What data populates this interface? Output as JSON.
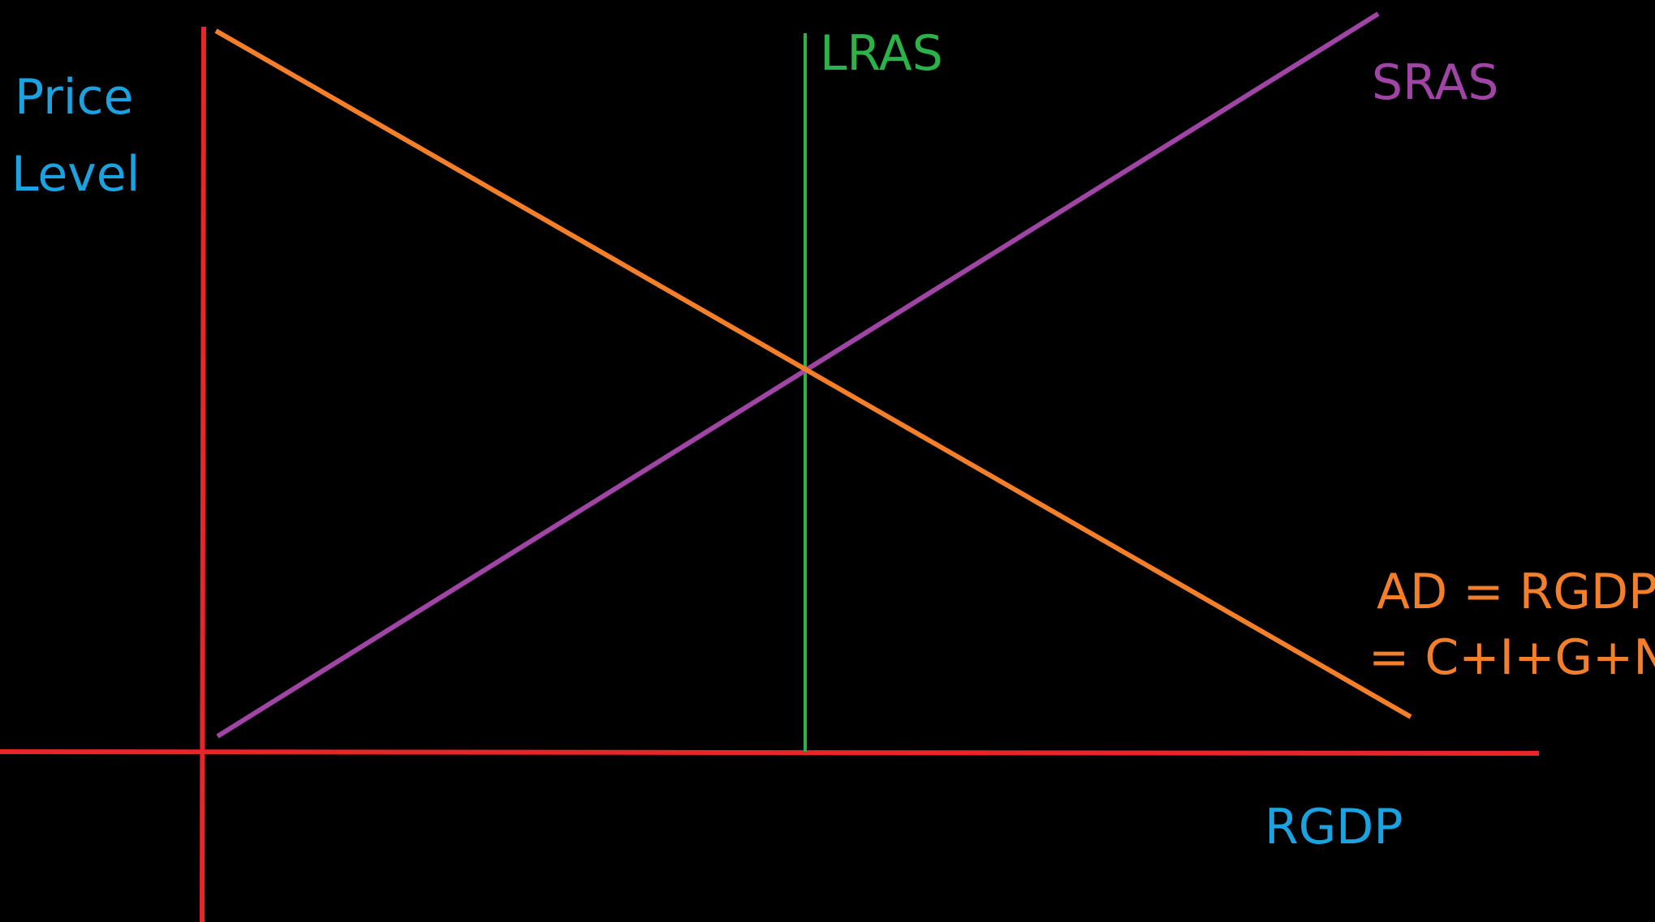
{
  "diagram": {
    "background_color": "#000000",
    "axes": {
      "color": "#e8262a",
      "y_axis_label_line1": "Price",
      "y_axis_label_line2": "Level",
      "x_axis_label": "RGDP",
      "label_color": "#1aa3e0"
    },
    "curves": {
      "lras": {
        "label": "LRAS",
        "color": "#2bb34a"
      },
      "sras": {
        "label": "SRAS",
        "color": "#a044a6"
      },
      "ad": {
        "label_line1": "AD = RGDP",
        "label_line2": "= C+I+G+Nx",
        "color": "#f47f2b"
      }
    }
  }
}
